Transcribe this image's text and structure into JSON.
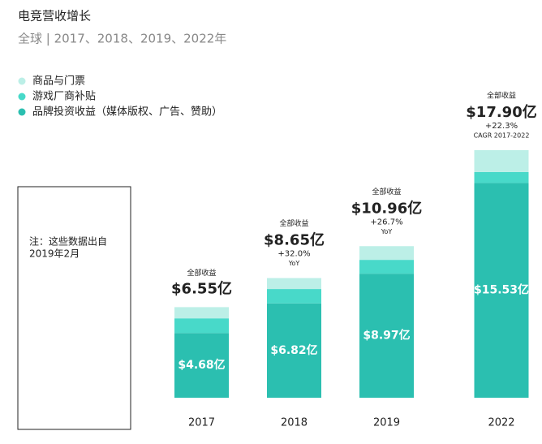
{
  "chart_data": {
    "type": "stacked_bar",
    "title": "电竞营收增长",
    "subtitle": "全球 | 2017、2018、2019、2022年",
    "categories": [
      "2017",
      "2018",
      "2019",
      "2022"
    ],
    "series": [
      {
        "name": "品牌投资收益（媒体版权、广告、赞助）",
        "color": "#2bbfb0",
        "values": [
          4.68,
          6.82,
          8.97,
          15.53
        ],
        "value_labels": [
          "$4.68亿",
          "$6.82亿",
          "$8.97亿",
          "$15.53亿"
        ]
      },
      {
        "name": "游戏厂商补贴",
        "color": "#48d9c9",
        "values": [
          1.06,
          1.04,
          1.0,
          0.79
        ]
      },
      {
        "name": "商品与门票",
        "color": "#bcefe7",
        "values": [
          0.81,
          0.79,
          0.99,
          1.58
        ]
      }
    ],
    "total_label": "全部收益",
    "totals": {
      "values": [
        6.55,
        8.65,
        10.96,
        17.9
      ],
      "value_labels": [
        "$6.55亿",
        "$8.65亿",
        "$10.96亿",
        "$17.90亿"
      ]
    },
    "growth": {
      "values": [
        null,
        32.0,
        26.7,
        22.3
      ],
      "value_labels": [
        null,
        "+32.0%",
        "+26.7%",
        "+22.3%"
      ],
      "notes": [
        null,
        "YoY",
        "YoY",
        "CAGR 2017-2022"
      ]
    },
    "note": [
      "注：这些数据出自",
      "2019年2月"
    ]
  }
}
